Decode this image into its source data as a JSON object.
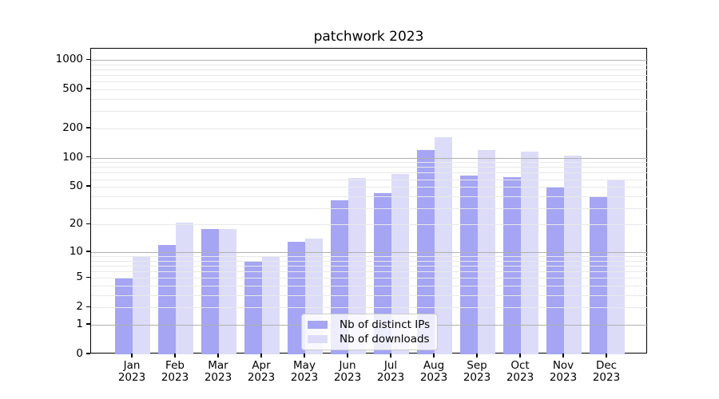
{
  "chart_data": {
    "type": "bar",
    "title": "patchwork 2023",
    "categories": [
      "Jan\n2023",
      "Feb\n2023",
      "Mar\n2023",
      "Apr\n2023",
      "May\n2023",
      "Jun\n2023",
      "Jul\n2023",
      "Aug\n2023",
      "Sep\n2023",
      "Oct\n2023",
      "Nov\n2023",
      "Dec\n2023"
    ],
    "series": [
      {
        "name": "Nb of distinct IPs",
        "color": "#a5a5f3",
        "values": [
          5,
          12,
          18,
          8,
          13,
          36,
          43,
          120,
          66,
          63,
          49,
          39
        ]
      },
      {
        "name": "Nb of downloads",
        "color": "#dcdcf9",
        "values": [
          9,
          21,
          18,
          9,
          14,
          62,
          68,
          162,
          119,
          115,
          106,
          59
        ]
      }
    ],
    "xlabel": "",
    "ylabel": "",
    "yscale": "log1p",
    "ylim": [
      0,
      1300
    ],
    "y_tick_values": [
      0,
      1,
      2,
      5,
      10,
      20,
      50,
      100,
      200,
      500,
      1000
    ],
    "y_tick_labels": [
      "0",
      "1",
      "2",
      "5",
      "10",
      "20",
      "50",
      "100",
      "200",
      "500",
      "1000"
    ],
    "y_major_grid_values": [
      1,
      10,
      100,
      1000
    ],
    "grid": "both",
    "legend_position": "lower center",
    "colors": {
      "grid_major": "#b0b0b0",
      "grid_minor": "#e9e9e9",
      "axis": "#000000",
      "background": "#ffffff"
    }
  }
}
